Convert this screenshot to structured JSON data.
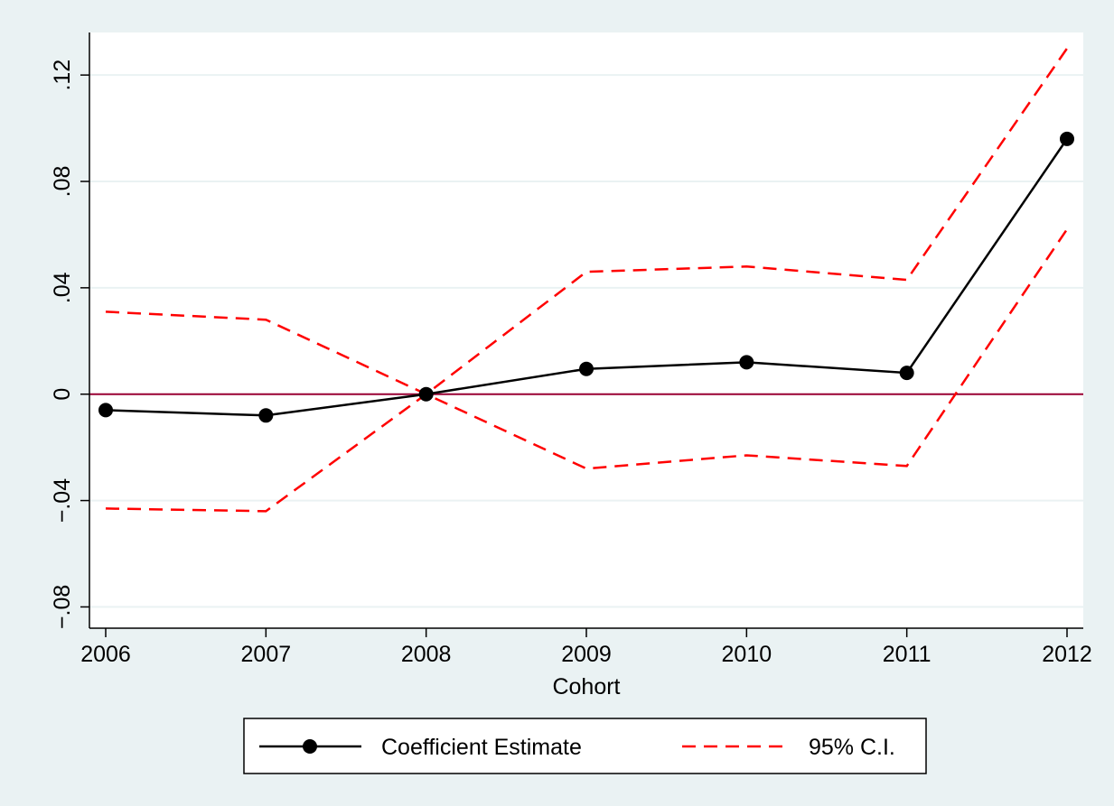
{
  "chart_data": {
    "type": "line",
    "title": "",
    "xlabel": "Cohort",
    "ylabel": "",
    "x": [
      2006,
      2007,
      2008,
      2009,
      2010,
      2011,
      2012
    ],
    "x_tick_labels": [
      "2006",
      "2007",
      "2008",
      "2009",
      "2010",
      "2011",
      "2012"
    ],
    "y_ticks": [
      -0.08,
      -0.04,
      0,
      0.04,
      0.08,
      0.12
    ],
    "y_tick_labels": [
      "-.08",
      "-.04",
      "0",
      ".04",
      ".08",
      ".12"
    ],
    "xlim": [
      2006,
      2012
    ],
    "ylim": [
      -0.088,
      0.136
    ],
    "grid": true,
    "reference_line": 0,
    "series": [
      {
        "name": "Coefficient Estimate",
        "style": "solid-markers",
        "values": [
          -0.006,
          -0.008,
          0.0,
          0.0095,
          0.012,
          0.008,
          0.096
        ]
      },
      {
        "name": "95% C.I.",
        "style": "dashed",
        "role": "upper",
        "values": [
          0.031,
          0.028,
          0.0,
          0.046,
          0.048,
          0.043,
          0.13
        ]
      },
      {
        "name": "95% C.I.",
        "style": "dashed",
        "role": "lower",
        "values": [
          -0.043,
          -0.044,
          0.0,
          -0.028,
          -0.023,
          -0.027,
          0.062
        ]
      }
    ],
    "legend": {
      "placement": "bottom",
      "entries": [
        "Coefficient Estimate",
        "95% C.I."
      ]
    },
    "colors": {
      "estimate": "#000000",
      "ci": "#ff0000",
      "reference": "#990033",
      "grid": "#eaf2f3",
      "background": "#eaf2f3",
      "plot_background": "#ffffff"
    }
  }
}
